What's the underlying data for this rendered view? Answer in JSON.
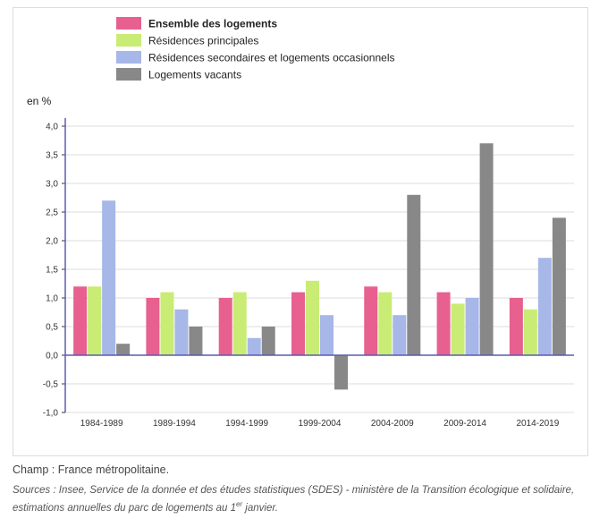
{
  "chart_data": {
    "type": "bar",
    "ylabel": "en %",
    "ylim": [
      -1.0,
      4.0
    ],
    "yticks": [
      "4,0",
      "3,5",
      "3,0",
      "2,5",
      "2,0",
      "1,5",
      "1,0",
      "0,5",
      "0,0",
      "-0,5",
      "-1,0"
    ],
    "categories": [
      "1984-1989",
      "1989-1994",
      "1994-1999",
      "1999-2004",
      "2004-2009",
      "2009-2014",
      "2014-2019"
    ],
    "series": [
      {
        "name": "Ensemble des logements",
        "color": "#e7608f",
        "values": [
          1.2,
          1.0,
          1.0,
          1.1,
          1.2,
          1.1,
          1.0
        ]
      },
      {
        "name": "Résidences principales",
        "color": "#c9ec74",
        "values": [
          1.2,
          1.1,
          1.1,
          1.3,
          1.1,
          0.9,
          0.8
        ]
      },
      {
        "name": "Résidences secondaires et logements occasionnels",
        "color": "#a6b7e8",
        "values": [
          2.7,
          0.8,
          0.3,
          0.7,
          0.7,
          1.0,
          1.7
        ]
      },
      {
        "name": "Logements vacants",
        "color": "#888888",
        "values": [
          0.2,
          0.5,
          0.5,
          -0.6,
          2.8,
          3.7,
          2.4
        ]
      }
    ],
    "grid": true,
    "legend": "top-left"
  },
  "footer": {
    "champ": "Champ : France métropolitaine.",
    "sources": "Sources : Insee, Service de la donnée et des études statistiques (SDES) - ministère de la Transition écologique et solidaire, estimations annuelles du parc de logements au 1",
    "sources_sup": "er",
    "sources_end": " janvier."
  }
}
